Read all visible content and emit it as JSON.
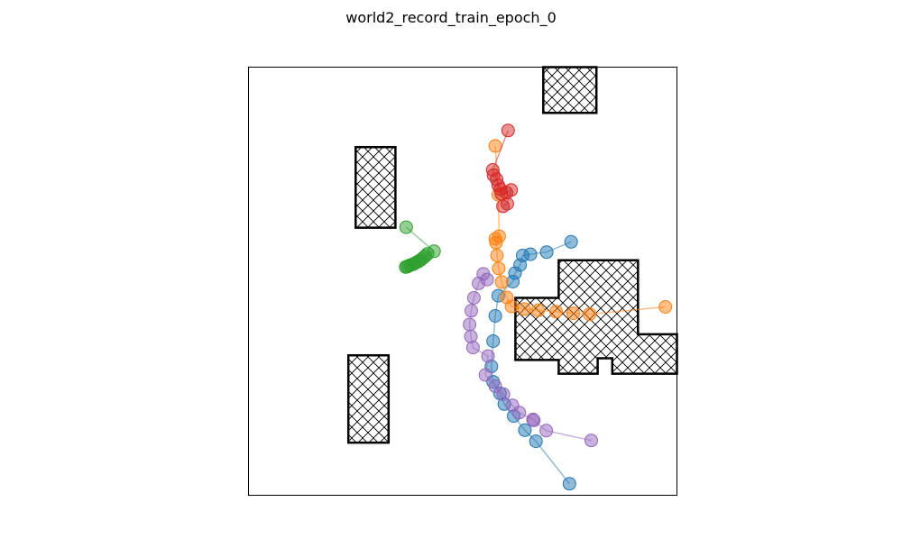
{
  "chart_data": {
    "type": "scatter",
    "title": "world2_record_train_epoch_0",
    "xlim": [
      0,
      100
    ],
    "ylim": [
      0,
      100
    ],
    "grid": false,
    "ticks": false,
    "legend": false,
    "obstacles": [
      [
        [
          25,
          62.5
        ],
        [
          34.3,
          62.5
        ],
        [
          34.3,
          81.3
        ],
        [
          25,
          81.3
        ]
      ],
      [
        [
          68.8,
          89.3
        ],
        [
          81.2,
          89.3
        ],
        [
          81.2,
          100
        ],
        [
          68.8,
          100
        ]
      ],
      [
        [
          23.3,
          12.3
        ],
        [
          32.7,
          12.3
        ],
        [
          32.7,
          32.7
        ],
        [
          23.3,
          32.7
        ]
      ],
      [
        [
          72.4,
          28.4
        ],
        [
          81.5,
          28.4
        ],
        [
          81.5,
          32.0
        ],
        [
          84.9,
          32.0
        ],
        [
          84.9,
          28.4
        ],
        [
          100,
          28.4
        ],
        [
          100,
          37.6
        ],
        [
          90.9,
          37.6
        ],
        [
          90.9,
          54.9
        ],
        [
          72.4,
          54.9
        ],
        [
          72.4,
          46.1
        ],
        [
          62.3,
          46.1
        ],
        [
          62.3,
          31.6
        ],
        [
          72.4,
          31.6
        ]
      ]
    ],
    "series": [
      {
        "color": "#1f77b4",
        "x": [
          74.9,
          67.1,
          64.5,
          61.9,
          59.7,
          58.7,
          57.1,
          56.7,
          57.1,
          57.6,
          58.3,
          61.7,
          62.2,
          63.4,
          64.0,
          65.8,
          69.6,
          75.3
        ],
        "y": [
          2.7,
          12.6,
          15.2,
          18.5,
          21.3,
          23.8,
          26.5,
          30.1,
          36.0,
          41.9,
          46.6,
          49.9,
          51.9,
          53.8,
          56.0,
          56.3,
          56.8,
          59.2
        ]
      },
      {
        "color": "#ff7f0e",
        "x": [
          97.3,
          79.6,
          75.8,
          71.8,
          67.6,
          64.4,
          61.4,
          60.3,
          59.1,
          58.4,
          58.0,
          57.8,
          57.6,
          58.5,
          58.3,
          57.6
        ],
        "y": [
          44.0,
          42.3,
          42.5,
          42.9,
          43.2,
          43.5,
          44.1,
          46.2,
          49.8,
          53.0,
          56.0,
          59.0,
          59.9,
          60.5,
          70.2,
          81.6
        ]
      },
      {
        "color": "#2ca02c",
        "x": [
          36.7,
          37.0,
          37.4,
          37.9,
          38.5,
          39.0,
          39.6,
          40.2,
          40.8,
          41.3,
          41.8,
          43.3,
          36.8
        ],
        "y": [
          53.3,
          53.4,
          53.6,
          53.8,
          54.0,
          54.3,
          54.6,
          55.0,
          55.5,
          55.9,
          56.4,
          57.0,
          62.6
        ]
      },
      {
        "color": "#d62728",
        "x": [
          60.6,
          57.0,
          57.2,
          57.9,
          58.3,
          58.8,
          59.0,
          60.2,
          61.3,
          60.4,
          59.4
        ],
        "y": [
          85.2,
          76.0,
          74.8,
          73.8,
          72.4,
          71.5,
          70.4,
          70.7,
          71.3,
          68.1,
          67.5
        ]
      },
      {
        "color": "#9467bd",
        "x": [
          80.0,
          69.5,
          66.6,
          66.4,
          63.2,
          61.6,
          59.5,
          57.6,
          55.3,
          55.9,
          52.4,
          51.9,
          51.6,
          52.0,
          52.6,
          53.7,
          54.8,
          55.7
        ],
        "y": [
          12.8,
          15.1,
          17.5,
          17.7,
          19.3,
          21.0,
          23.6,
          25.5,
          28.1,
          32.5,
          34.5,
          37.1,
          39.9,
          43.1,
          46.1,
          49.5,
          51.7,
          50.4
        ]
      }
    ]
  }
}
